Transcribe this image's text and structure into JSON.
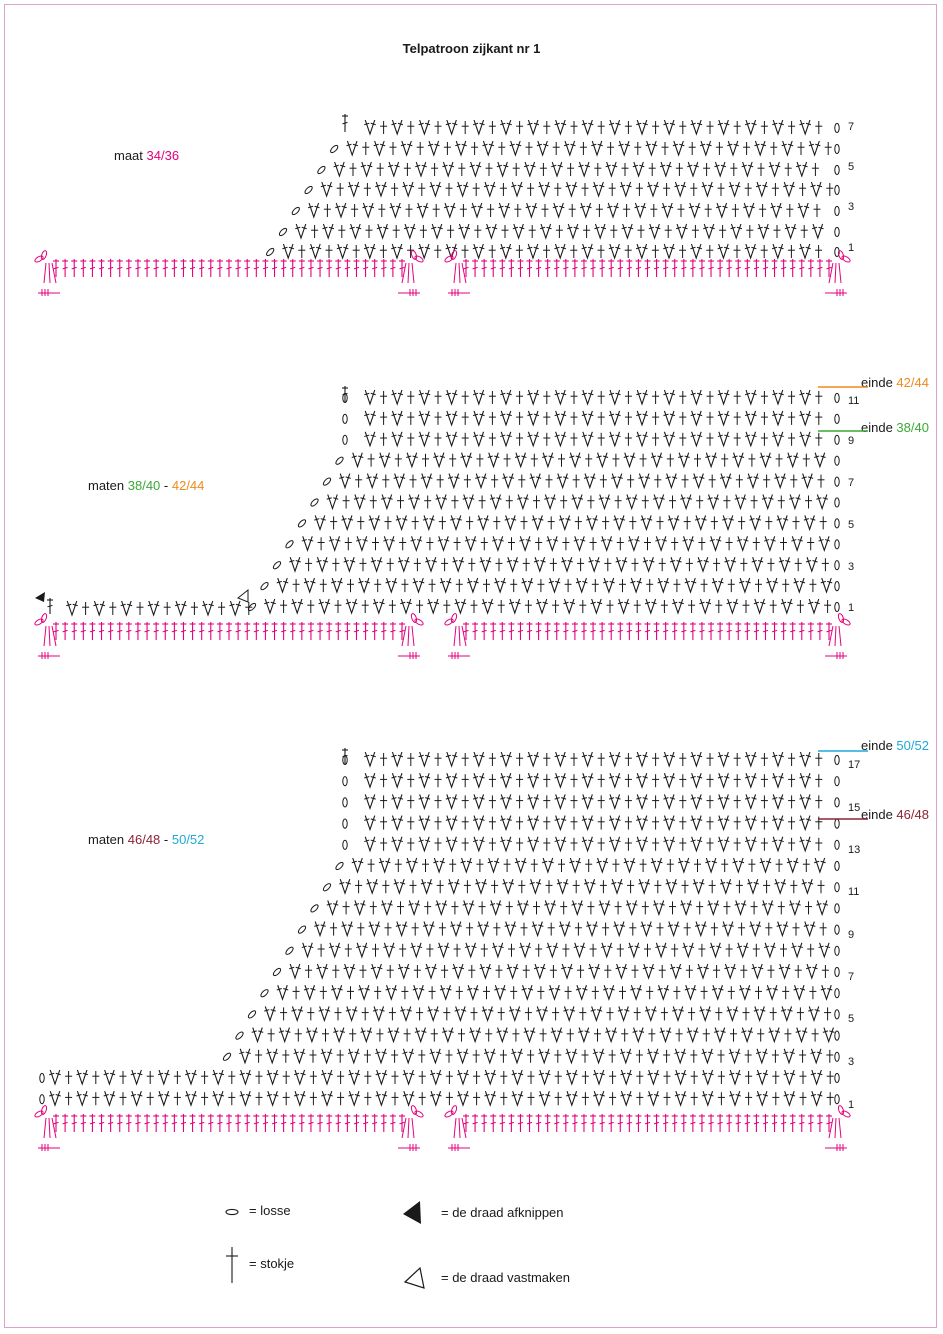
{
  "title": "Telpatroon zijkant nr 1",
  "colors": {
    "stitch": "#1a1a1a",
    "foundation": "#e4007c",
    "green": "#3aa935",
    "orange": "#f08a1c",
    "maroon": "#8b2432",
    "cyan": "#1fa9d8"
  },
  "sections": [
    {
      "label_prefix": "maat ",
      "label_a": "34/36",
      "label_sep": "",
      "label_b": "",
      "row_numbers": [
        "7",
        "5",
        "3",
        "1"
      ],
      "end_markers": []
    },
    {
      "label_prefix": "maten ",
      "label_a": "38/40",
      "label_sep": " - ",
      "label_b": "42/44",
      "row_numbers": [
        "11",
        "9",
        "7",
        "5",
        "3",
        "1"
      ],
      "end_markers": [
        {
          "word": "einde ",
          "size": "42/44",
          "color": "orange"
        },
        {
          "word": "einde ",
          "size": "38/40",
          "color": "green"
        }
      ]
    },
    {
      "label_prefix": "maten ",
      "label_a": "46/48",
      "label_sep": " - ",
      "label_b": "50/52",
      "row_numbers": [
        "17",
        "15",
        "13",
        "11",
        "9",
        "7",
        "5",
        "3",
        "1"
      ],
      "end_markers": [
        {
          "word": "einde ",
          "size": "50/52",
          "color": "cyan"
        },
        {
          "word": "einde ",
          "size": "46/48",
          "color": "maroon"
        }
      ]
    }
  ],
  "legend": {
    "chain": "= losse",
    "treble": "= stokje",
    "cut": "= de draad afknippen",
    "join": "= de draad vastmaken"
  },
  "icons": {
    "chain": "chain-stitch-icon",
    "treble": "treble-stitch-icon",
    "cut": "filled-triangle-icon",
    "join": "outline-triangle-icon"
  }
}
